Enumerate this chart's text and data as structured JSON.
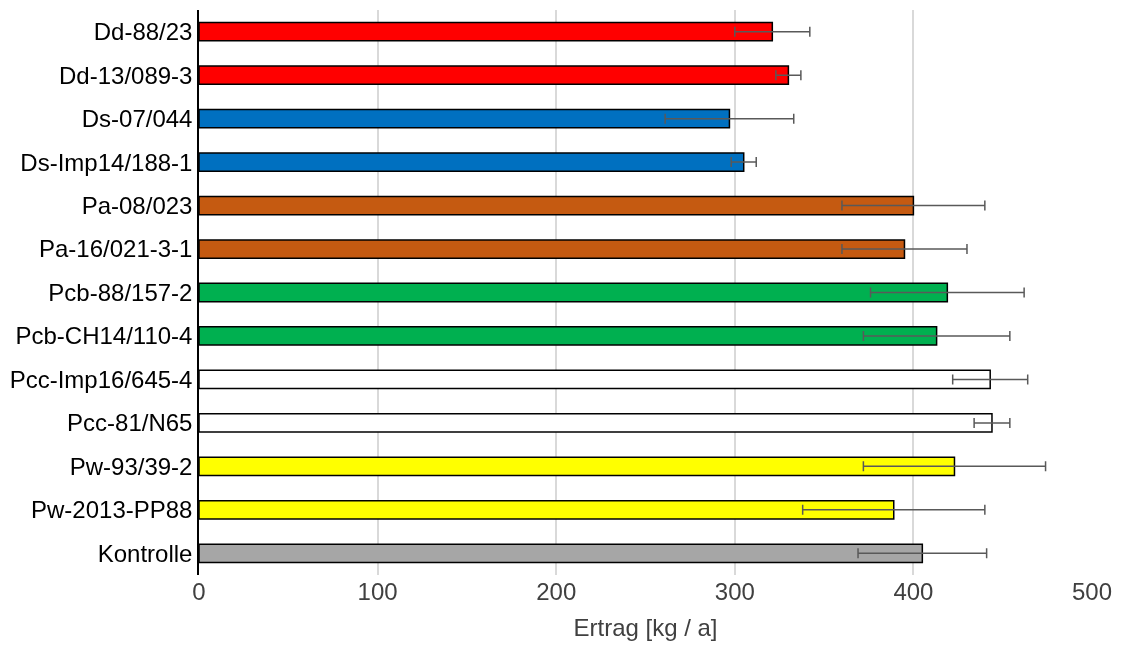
{
  "chart_data": {
    "type": "bar",
    "orientation": "horizontal",
    "xlabel": "Ertrag [kg / a]",
    "categories": [
      "Dd-88/23",
      "Dd-13/089-3",
      "Ds-07/044",
      "Ds-Imp14/188-1",
      "Pa-08/023",
      "Pa-16/021-3-1",
      "Pcb-88/157-2",
      "Pcb-CH14/110-4",
      "Pcc-Imp16/645-4",
      "Pcc-81/N65",
      "Pw-93/39-2",
      "Pw-2013-PP88",
      "Kontrolle"
    ],
    "values": [
      321,
      330,
      297,
      305,
      400,
      395,
      419,
      413,
      443,
      444,
      423,
      389,
      405
    ],
    "colors": [
      "#ff0000",
      "#ff0000",
      "#0070c0",
      "#0070c0",
      "#c55a11",
      "#c55a11",
      "#00b050",
      "#00b050",
      "#ffffff",
      "#ffffff",
      "#ffff00",
      "#ffff00",
      "#a6a6a6"
    ],
    "errors": [
      21,
      7,
      36,
      7,
      40,
      35,
      43,
      41,
      21,
      10,
      51,
      51,
      36
    ],
    "xlim": [
      0,
      500
    ],
    "xticks": [
      0,
      100,
      200,
      300,
      400,
      500
    ],
    "grid": "x"
  }
}
